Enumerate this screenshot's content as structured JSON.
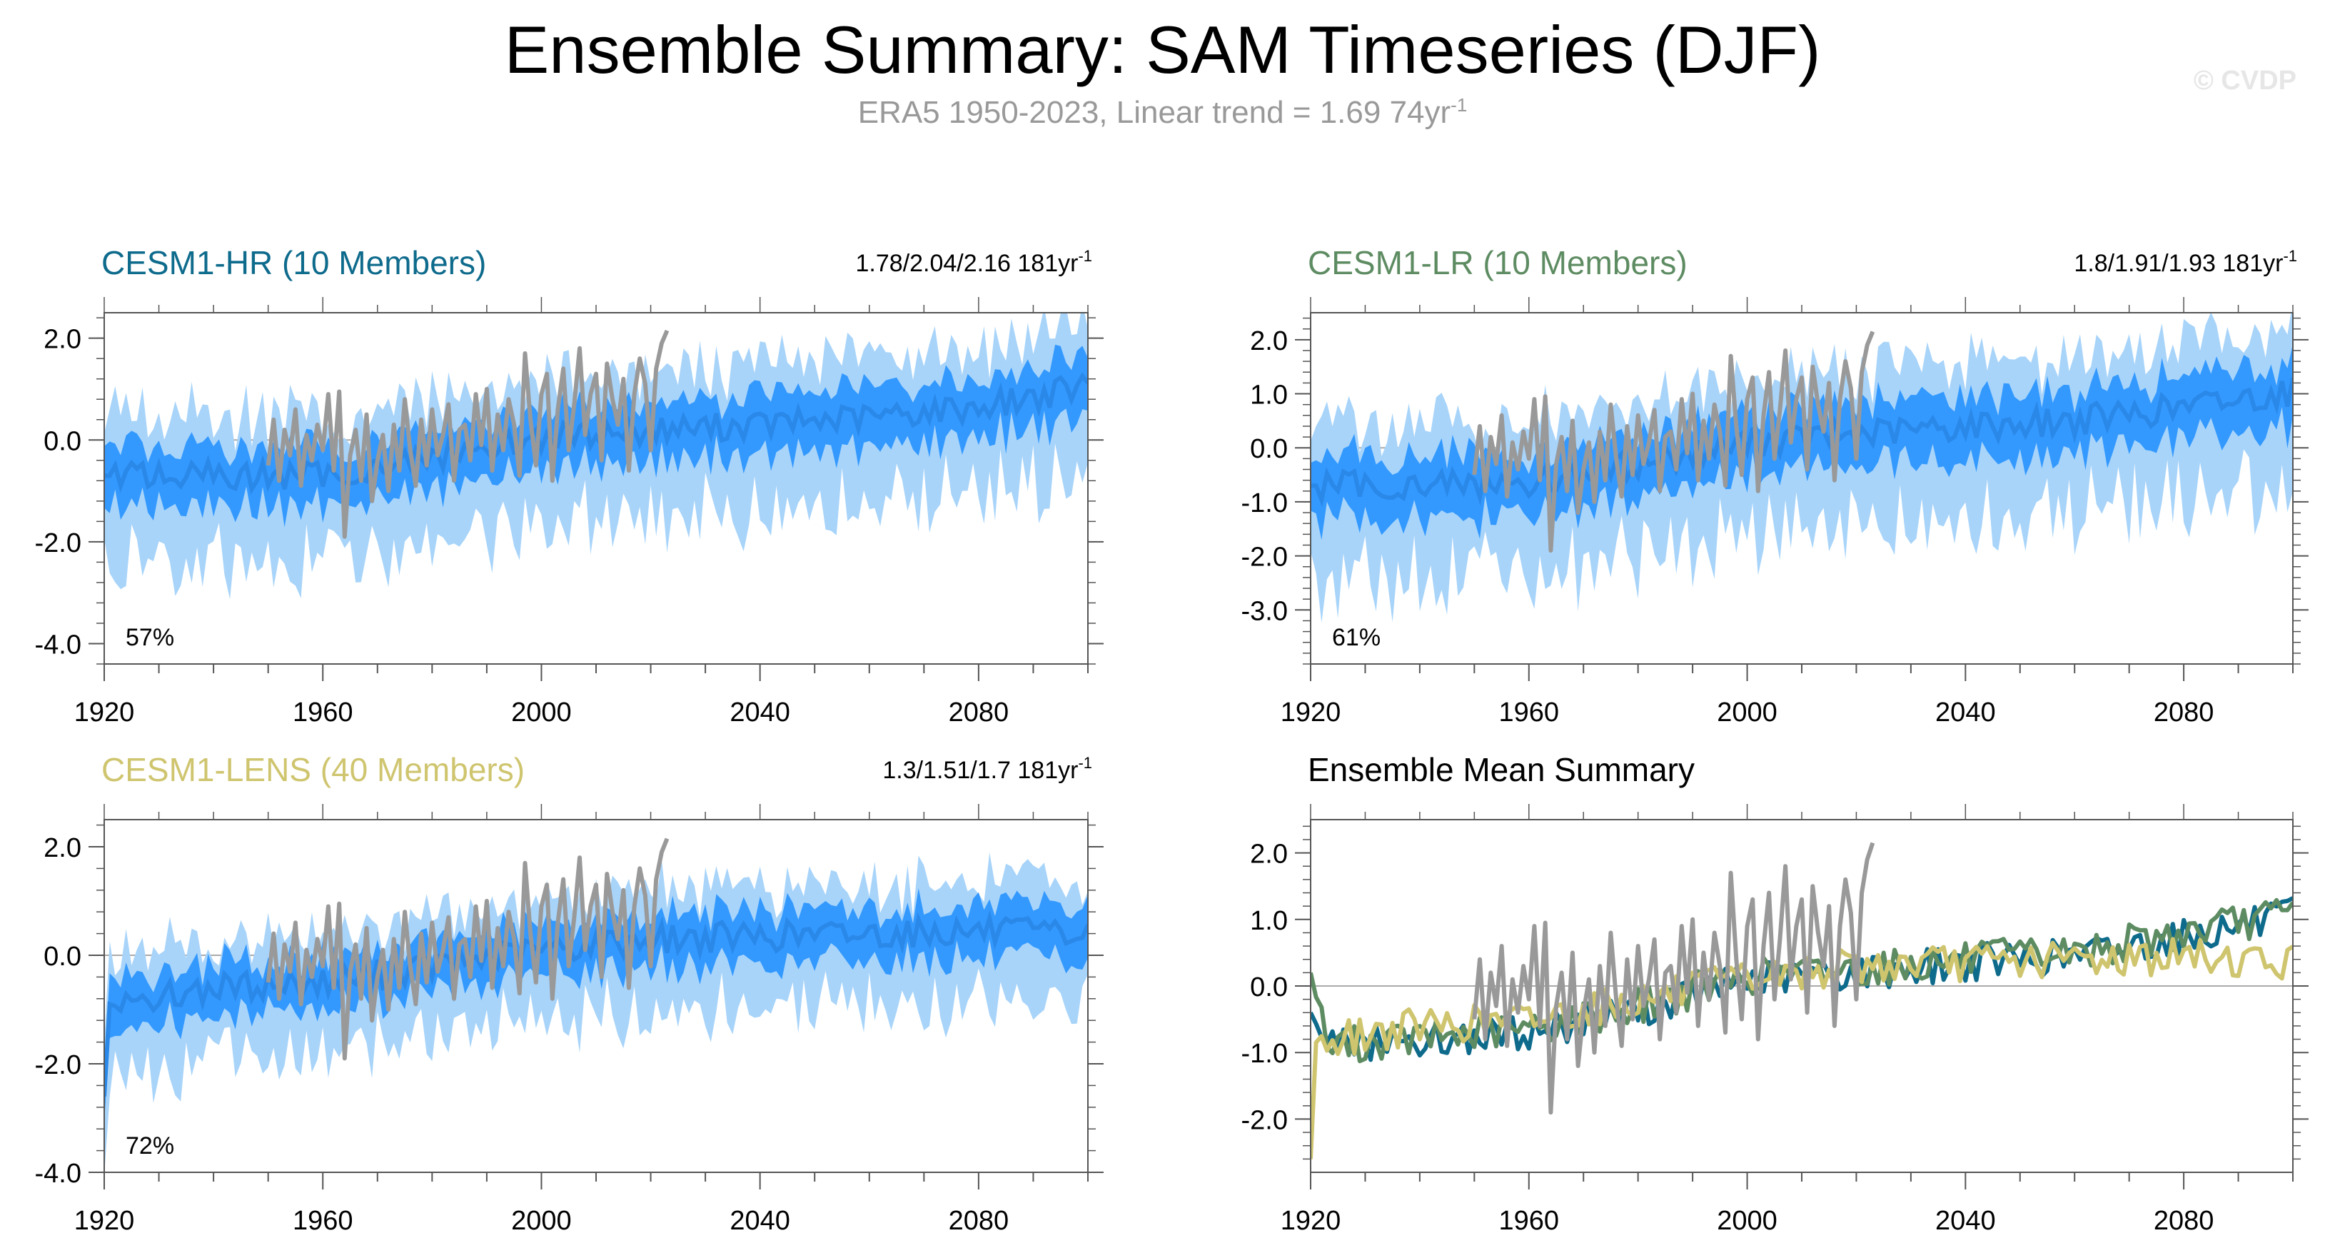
{
  "header": {
    "title": "Ensemble Summary: SAM Timeseries (DJF)",
    "subtitle_main": "ERA5 1950-2023, Linear trend = 1.69 74yr",
    "subtitle_exp": "-1",
    "watermark": "© CVDP"
  },
  "colors": {
    "band_outer": "#a8d4fa",
    "band_inner": "#3399ff",
    "mean_line": "#2a88e8",
    "obs": "#999999",
    "hr": "#0e6b8c",
    "lr": "#5e8c62",
    "lens": "#cfc56f",
    "axis": "#555555",
    "zero": "#aaaaaa"
  },
  "chart_data": [
    {
      "id": "hr",
      "type": "line",
      "title": "CESM1-HR (10 Members)",
      "title_color": "#0e6b8c",
      "trend_text": "1.78/2.04/2.16 181yr",
      "trend_exp": "-1",
      "percent_label": "57%",
      "xlim": [
        1920,
        2100
      ],
      "ylim": [
        -4.4,
        2.5
      ],
      "yticks": [
        2.0,
        0.0,
        -2.0,
        -4.0
      ],
      "ytick_labels": [
        "2.0",
        "0.0",
        "-2.0",
        "-4.0"
      ],
      "xticks": [
        1920,
        1960,
        2000,
        2040,
        2080
      ],
      "xtick_labels": [
        "1920",
        "1960",
        "2000",
        "2040",
        "2080"
      ],
      "series": [
        {
          "name": "ensemble_mean",
          "x_start": 1920,
          "x_end": 2100,
          "mean_anchors": [
            [
              1920,
              -0.7
            ],
            [
              1960,
              -0.7
            ],
            [
              1980,
              -0.35
            ],
            [
              2000,
              0.05
            ],
            [
              2020,
              0.2
            ],
            [
              2040,
              0.3
            ],
            [
              2060,
              0.45
            ],
            [
              2080,
              0.65
            ],
            [
              2100,
              1.05
            ]
          ],
          "inner_halfwidth": 0.55,
          "outer_halfwidth": 1.3
        },
        {
          "name": "ERA5 obs",
          "x_start": 1950,
          "x_end": 2023,
          "values": [
            -0.5,
            0.4,
            -0.8,
            0.2,
            -0.3,
            0.6,
            -0.9,
            0.1,
            -0.4,
            0.3,
            -0.2,
            0.9,
            -0.6,
            0.95,
            -1.9,
            -0.3,
            0.2,
            -0.8,
            0.5,
            -1.2,
            -0.4,
            0.1,
            -1.0,
            0.3,
            -0.6,
            0.8,
            -0.2,
            -0.9,
            0.4,
            -0.5,
            0.6,
            -0.3,
            0.1,
            0.7,
            -0.8,
            0.2,
            0.3,
            -0.4,
            0.9,
            -0.1,
            1.0,
            -0.6,
            0.5,
            -0.2,
            0.8,
            0.3,
            -0.7,
            1.7,
            0.4,
            -0.5,
            0.9,
            1.3,
            -0.8,
            0.6,
            1.4,
            -0.2,
            0.7,
            1.8,
            0.1,
            0.9,
            1.3,
            -0.4,
            1.5,
            0.8,
            0.3,
            1.2,
            -0.6,
            0.9,
            1.6,
            1.1,
            -0.2,
            1.4,
            1.9,
            2.15
          ]
        }
      ]
    },
    {
      "id": "lr",
      "type": "line",
      "title": "CESM1-LR (10 Members)",
      "title_color": "#5e8c62",
      "trend_text": "1.8/1.91/1.93 181yr",
      "trend_exp": "-1",
      "percent_label": "61%",
      "xlim": [
        1920,
        2100
      ],
      "ylim": [
        -4.0,
        2.5
      ],
      "yticks": [
        2.0,
        1.0,
        0.0,
        -1.0,
        -2.0,
        -3.0
      ],
      "ytick_labels": [
        "2.0",
        "1.0",
        "0.0",
        "-1.0",
        "-2.0",
        "-3.0"
      ],
      "xticks": [
        1920,
        1960,
        2000,
        2040,
        2080
      ],
      "xtick_labels": [
        "1920",
        "1960",
        "2000",
        "2040",
        "2080"
      ],
      "series": [
        {
          "name": "ensemble_mean",
          "x_start": 1920,
          "x_end": 2100,
          "mean_anchors": [
            [
              1920,
              -0.7
            ],
            [
              1960,
              -0.65
            ],
            [
              1980,
              -0.3
            ],
            [
              2000,
              0.1
            ],
            [
              2020,
              0.25
            ],
            [
              2040,
              0.4
            ],
            [
              2060,
              0.5
            ],
            [
              2080,
              0.75
            ],
            [
              2100,
              1.05
            ]
          ],
          "inner_halfwidth": 0.55,
          "outer_halfwidth": 1.3
        },
        {
          "name": "ERA5 obs",
          "x_start": 1950,
          "x_end": 2023,
          "values": [
            -0.5,
            0.4,
            -0.8,
            0.2,
            -0.3,
            0.6,
            -0.9,
            0.1,
            -0.4,
            0.3,
            -0.2,
            0.9,
            -0.6,
            0.95,
            -1.9,
            -0.3,
            0.2,
            -0.8,
            0.5,
            -1.2,
            -0.4,
            0.1,
            -1.0,
            0.3,
            -0.6,
            0.8,
            -0.2,
            -0.9,
            0.4,
            -0.5,
            0.6,
            -0.3,
            0.1,
            0.7,
            -0.8,
            0.2,
            0.3,
            -0.4,
            0.9,
            -0.1,
            1.0,
            -0.6,
            0.5,
            -0.2,
            0.8,
            0.3,
            -0.7,
            1.7,
            0.4,
            -0.5,
            0.9,
            1.3,
            -0.8,
            0.6,
            1.4,
            -0.2,
            0.7,
            1.8,
            0.1,
            0.9,
            1.3,
            -0.4,
            1.5,
            0.8,
            0.3,
            1.2,
            -0.6,
            0.9,
            1.6,
            1.1,
            -0.2,
            1.4,
            1.9,
            2.15
          ]
        }
      ]
    },
    {
      "id": "lens",
      "type": "line",
      "title": "CESM1-LENS (40 Members)",
      "title_color": "#cfc56f",
      "trend_text": "1.3/1.51/1.7 181yr",
      "trend_exp": "-1",
      "percent_label": "72%",
      "xlim": [
        1920,
        2100
      ],
      "ylim": [
        -4.0,
        2.5
      ],
      "yticks": [
        2.0,
        0.0,
        -2.0,
        -4.0
      ],
      "ytick_labels": [
        "2.0",
        "0.0",
        "-2.0",
        "-4.0"
      ],
      "xticks": [
        1920,
        1960,
        2000,
        2040,
        2080
      ],
      "xtick_labels": [
        "1920",
        "1960",
        "2000",
        "2040",
        "2080"
      ],
      "series": [
        {
          "name": "ensemble_mean",
          "x_start": 1920,
          "x_end": 2100,
          "mean_anchors": [
            [
              1920,
              -2.6
            ],
            [
              1921,
              -0.9
            ],
            [
              1940,
              -0.6
            ],
            [
              1960,
              -0.5
            ],
            [
              1980,
              -0.2
            ],
            [
              2000,
              0.1
            ],
            [
              2020,
              0.3
            ],
            [
              2040,
              0.35
            ],
            [
              2060,
              0.4
            ],
            [
              2080,
              0.45
            ],
            [
              2100,
              0.35
            ]
          ],
          "inner_halfwidth": 0.45,
          "outer_halfwidth": 1.0
        },
        {
          "name": "ERA5 obs",
          "x_start": 1950,
          "x_end": 2023,
          "values": [
            -0.5,
            0.4,
            -0.8,
            0.2,
            -0.3,
            0.6,
            -0.9,
            0.1,
            -0.4,
            0.3,
            -0.2,
            0.9,
            -0.6,
            0.95,
            -1.9,
            -0.3,
            0.2,
            -0.8,
            0.5,
            -1.2,
            -0.4,
            0.1,
            -1.0,
            0.3,
            -0.6,
            0.8,
            -0.2,
            -0.9,
            0.4,
            -0.5,
            0.6,
            -0.3,
            0.1,
            0.7,
            -0.8,
            0.2,
            0.3,
            -0.4,
            0.9,
            -0.1,
            1.0,
            -0.6,
            0.5,
            -0.2,
            0.8,
            0.3,
            -0.7,
            1.7,
            0.4,
            -0.5,
            0.9,
            1.3,
            -0.8,
            0.6,
            1.4,
            -0.2,
            0.7,
            1.8,
            0.1,
            0.9,
            1.3,
            -0.4,
            1.5,
            0.8,
            0.3,
            1.2,
            -0.6,
            0.9,
            1.6,
            1.1,
            -0.2,
            1.4,
            1.9,
            2.15
          ]
        }
      ]
    },
    {
      "id": "summary",
      "type": "line",
      "title": "Ensemble Mean Summary",
      "title_color": "#000000",
      "trend_text": "",
      "trend_exp": "",
      "percent_label": "",
      "xlim": [
        1920,
        2100
      ],
      "ylim": [
        -2.8,
        2.5
      ],
      "yticks": [
        2.0,
        1.0,
        0.0,
        -1.0,
        -2.0
      ],
      "ytick_labels": [
        "2.0",
        "1.0",
        "0.0",
        "-1.0",
        "-2.0"
      ],
      "xticks": [
        1920,
        1960,
        2000,
        2040,
        2080
      ],
      "xtick_labels": [
        "1920",
        "1960",
        "2000",
        "2040",
        "2080"
      ],
      "series": [
        {
          "name": "ERA5 obs",
          "color_key": "obs",
          "x_start": 1950,
          "x_end": 2023,
          "values": [
            -0.5,
            0.4,
            -0.8,
            0.2,
            -0.3,
            0.6,
            -0.9,
            0.1,
            -0.4,
            0.3,
            -0.2,
            0.9,
            -0.6,
            0.95,
            -1.9,
            -0.3,
            0.2,
            -0.8,
            0.5,
            -1.2,
            -0.4,
            0.1,
            -1.0,
            0.3,
            -0.6,
            0.8,
            -0.2,
            -0.9,
            0.4,
            -0.5,
            0.6,
            -0.3,
            0.1,
            0.7,
            -0.8,
            0.2,
            0.3,
            -0.4,
            0.9,
            -0.1,
            1.0,
            -0.6,
            0.5,
            -0.2,
            0.8,
            0.3,
            -0.7,
            1.7,
            0.4,
            -0.5,
            0.9,
            1.3,
            -0.8,
            0.6,
            1.4,
            -0.2,
            0.7,
            1.8,
            0.1,
            0.9,
            1.3,
            -0.4,
            1.5,
            0.8,
            0.3,
            1.2,
            -0.6,
            0.9,
            1.6,
            1.1,
            -0.2,
            1.4,
            1.9,
            2.15
          ]
        },
        {
          "name": "CESM1-HR mean",
          "color_key": "hr",
          "x_start": 1920,
          "x_end": 2100,
          "mean_anchors": [
            [
              1920,
              -0.4
            ],
            [
              1923,
              -0.9
            ],
            [
              1960,
              -0.7
            ],
            [
              1980,
              -0.35
            ],
            [
              2000,
              0.1
            ],
            [
              2020,
              0.2
            ],
            [
              2040,
              0.35
            ],
            [
              2060,
              0.45
            ],
            [
              2080,
              0.75
            ],
            [
              2100,
              1.05
            ]
          ]
        },
        {
          "name": "CESM1-LR mean",
          "color_key": "lr",
          "x_start": 1920,
          "x_end": 2100,
          "mean_anchors": [
            [
              1920,
              0.2
            ],
            [
              1923,
              -0.9
            ],
            [
              1960,
              -0.65
            ],
            [
              1980,
              -0.3
            ],
            [
              2000,
              0.15
            ],
            [
              2020,
              0.25
            ],
            [
              2040,
              0.4
            ],
            [
              2060,
              0.5
            ],
            [
              2080,
              0.8
            ],
            [
              2100,
              1.1
            ]
          ]
        },
        {
          "name": "CESM1-LENS mean",
          "color_key": "lens",
          "x_start": 1920,
          "x_end": 2100,
          "mean_anchors": [
            [
              1920,
              -2.6
            ],
            [
              1921,
              -0.85
            ],
            [
              1940,
              -0.6
            ],
            [
              1960,
              -0.5
            ],
            [
              1980,
              -0.2
            ],
            [
              2000,
              0.1
            ],
            [
              2020,
              0.3
            ],
            [
              2040,
              0.35
            ],
            [
              2060,
              0.4
            ],
            [
              2080,
              0.45
            ],
            [
              2100,
              0.35
            ]
          ]
        }
      ]
    }
  ]
}
